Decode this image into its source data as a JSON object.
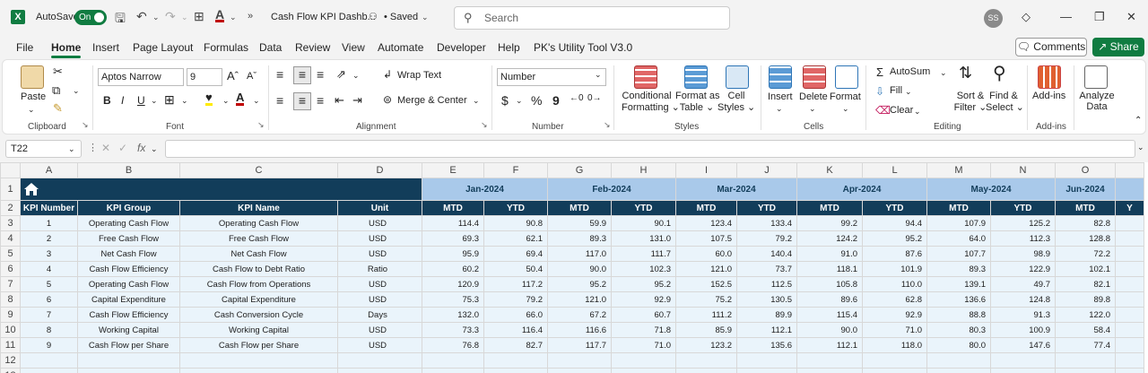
{
  "titlebar": {
    "autosave_label": "AutoSave",
    "autosave_state": "On",
    "doc_title": "Cash Flow KPI Dashb...",
    "saved_status": "• Saved",
    "search_placeholder": "Search",
    "avatar_initials": "SS"
  },
  "menu": {
    "tabs": [
      "File",
      "Home",
      "Insert",
      "Page Layout",
      "Formulas",
      "Data",
      "Review",
      "View",
      "Automate",
      "Developer",
      "Help",
      "PK's Utility Tool V3.0"
    ],
    "active": "Home",
    "comments": "Comments",
    "share": "Share"
  },
  "ribbon": {
    "clipboard": {
      "paste": "Paste",
      "label": "Clipboard"
    },
    "font": {
      "name": "Aptos Narrow",
      "size": "9",
      "bold": "B",
      "italic": "I",
      "underline": "U",
      "label": "Font"
    },
    "alignment": {
      "wrap": "Wrap Text",
      "merge": "Merge & Center",
      "label": "Alignment"
    },
    "number": {
      "format": "Number",
      "currency": "$",
      "percent": "%",
      "comma": "9",
      "label": "Number"
    },
    "styles": {
      "conditional": [
        "Conditional",
        "Formatting"
      ],
      "format_table": [
        "Format as",
        "Table"
      ],
      "cell_styles": [
        "Cell",
        "Styles"
      ],
      "label": "Styles"
    },
    "cells": {
      "insert": "Insert",
      "delete": "Delete",
      "format": "Format",
      "label": "Cells"
    },
    "editing": {
      "autosum": "AutoSum",
      "fill": "Fill",
      "clear": "Clear",
      "sort": [
        "Sort &",
        "Filter"
      ],
      "find": [
        "Find &",
        "Select"
      ],
      "label": "Editing"
    },
    "addins": {
      "addins": "Add-ins",
      "label": "Add-ins"
    },
    "analyze": [
      "Analyze",
      "Data"
    ]
  },
  "formula_bar": {
    "cell_ref": "T22",
    "fx": "fx",
    "content": ""
  },
  "sheet": {
    "columns": [
      "A",
      "B",
      "C",
      "D",
      "E",
      "F",
      "G",
      "H",
      "I",
      "J",
      "K",
      "L",
      "M",
      "N",
      "O",
      ""
    ],
    "months": [
      "Jan-2024",
      "Feb-2024",
      "Mar-2024",
      "Apr-2024",
      "May-2024",
      "Jun-2024"
    ],
    "headers": [
      "KPI Number",
      "KPI Group",
      "KPI Name",
      "Unit"
    ],
    "sub_headers": [
      "MTD",
      "YTD",
      "MTD",
      "YTD",
      "MTD",
      "YTD",
      "MTD",
      "YTD",
      "MTD",
      "YTD",
      "MTD",
      "Y"
    ],
    "rows": [
      {
        "n": "1",
        "group": "Operating Cash Flow",
        "name": "Operating Cash Flow",
        "unit": "USD",
        "vals": [
          "114.4",
          "90.8",
          "59.9",
          "90.1",
          "123.4",
          "133.4",
          "99.2",
          "94.4",
          "107.9",
          "125.2",
          "82.8",
          ""
        ]
      },
      {
        "n": "2",
        "group": "Free Cash Flow",
        "name": "Free Cash Flow",
        "unit": "USD",
        "vals": [
          "69.3",
          "62.1",
          "89.3",
          "131.0",
          "107.5",
          "79.2",
          "124.2",
          "95.2",
          "64.0",
          "112.3",
          "128.8",
          ""
        ]
      },
      {
        "n": "3",
        "group": "Net Cash Flow",
        "name": "Net Cash Flow",
        "unit": "USD",
        "vals": [
          "95.9",
          "69.4",
          "117.0",
          "111.7",
          "60.0",
          "140.4",
          "91.0",
          "87.6",
          "107.7",
          "98.9",
          "72.2",
          ""
        ]
      },
      {
        "n": "4",
        "group": "Cash Flow Efficiency",
        "name": "Cash Flow to Debt Ratio",
        "unit": "Ratio",
        "vals": [
          "60.2",
          "50.4",
          "90.0",
          "102.3",
          "121.0",
          "73.7",
          "118.1",
          "101.9",
          "89.3",
          "122.9",
          "102.1",
          ""
        ]
      },
      {
        "n": "5",
        "group": "Operating Cash Flow",
        "name": "Cash Flow from Operations",
        "unit": "USD",
        "vals": [
          "120.9",
          "117.2",
          "95.2",
          "95.2",
          "152.5",
          "112.5",
          "105.8",
          "110.0",
          "139.1",
          "49.7",
          "82.1",
          ""
        ]
      },
      {
        "n": "6",
        "group": "Capital Expenditure",
        "name": "Capital Expenditure",
        "unit": "USD",
        "vals": [
          "75.3",
          "79.2",
          "121.0",
          "92.9",
          "75.2",
          "130.5",
          "89.6",
          "62.8",
          "136.6",
          "124.8",
          "89.8",
          ""
        ]
      },
      {
        "n": "7",
        "group": "Cash Flow Efficiency",
        "name": "Cash Conversion Cycle",
        "unit": "Days",
        "vals": [
          "132.0",
          "66.0",
          "67.2",
          "60.7",
          "111.2",
          "89.9",
          "115.4",
          "92.9",
          "88.8",
          "91.3",
          "122.0",
          ""
        ]
      },
      {
        "n": "8",
        "group": "Working Capital",
        "name": "Working Capital",
        "unit": "USD",
        "vals": [
          "73.3",
          "116.4",
          "116.6",
          "71.8",
          "85.9",
          "112.1",
          "90.0",
          "71.0",
          "80.3",
          "100.9",
          "58.4",
          ""
        ]
      },
      {
        "n": "9",
        "group": "Cash Flow per Share",
        "name": "Cash Flow per Share",
        "unit": "USD",
        "vals": [
          "76.8",
          "82.7",
          "117.7",
          "71.0",
          "123.2",
          "135.6",
          "112.1",
          "118.0",
          "80.0",
          "147.6",
          "77.4",
          ""
        ]
      }
    ],
    "row_numbers": [
      "1",
      "2",
      "3",
      "4",
      "5",
      "6",
      "7",
      "8",
      "9",
      "10",
      "11",
      "12",
      "13"
    ]
  },
  "colors": {
    "excel_green": "#107c41",
    "header_navy": "#123d5a",
    "month_blue": "#a9c9ea",
    "cell_bg": "#eaf4fb"
  }
}
